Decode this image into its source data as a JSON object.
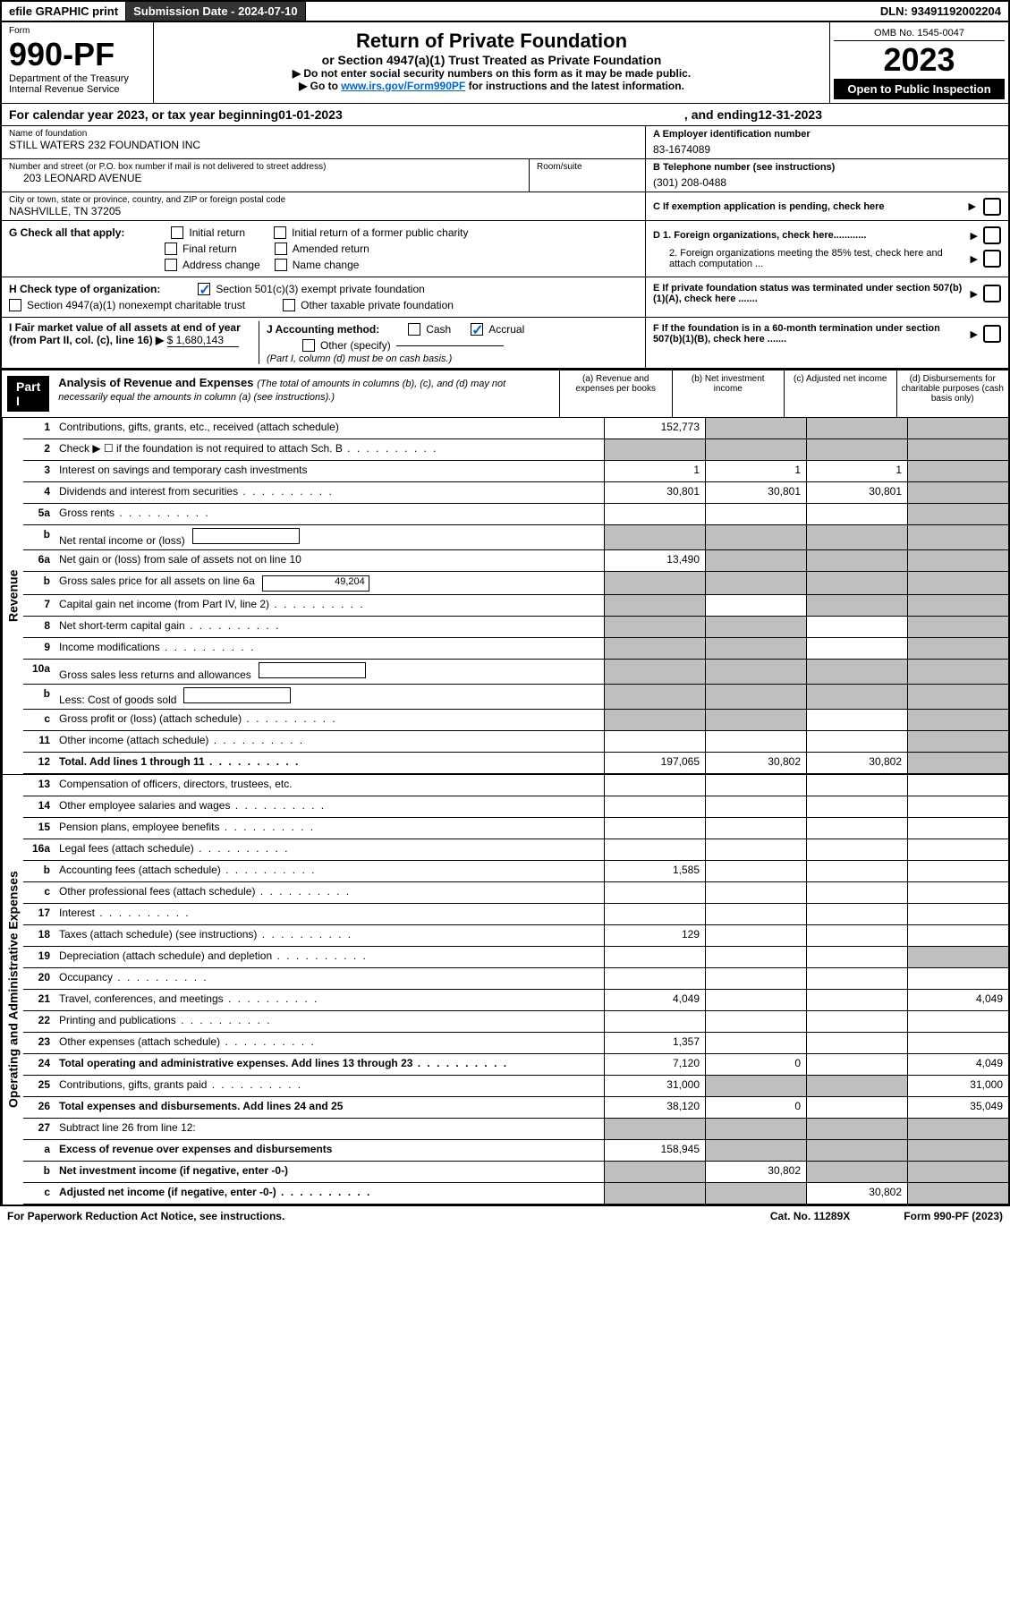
{
  "topbar": {
    "efile": "efile GRAPHIC print",
    "submission_label": "Submission Date - 2024-07-10",
    "dln": "DLN: 93491192002204"
  },
  "header": {
    "form_word": "Form",
    "form_num": "990-PF",
    "dept1": "Department of the Treasury",
    "dept2": "Internal Revenue Service",
    "title": "Return of Private Foundation",
    "subtitle": "or Section 4947(a)(1) Trust Treated as Private Foundation",
    "instr1": "▶ Do not enter social security numbers on this form as it may be made public.",
    "instr2_pre": "▶ Go to ",
    "instr2_link": "www.irs.gov/Form990PF",
    "instr2_post": " for instructions and the latest information.",
    "omb": "OMB No. 1545-0047",
    "year": "2023",
    "open": "Open to Public Inspection"
  },
  "calyear": {
    "pre": "For calendar year 2023, or tax year beginning ",
    "begin": "01-01-2023",
    "mid": " , and ending ",
    "end": "12-31-2023"
  },
  "info": {
    "name_label": "Name of foundation",
    "name": "STILL WATERS 232 FOUNDATION INC",
    "addr_label": "Number and street (or P.O. box number if mail is not delivered to street address)",
    "addr": "203 LEONARD AVENUE",
    "room_label": "Room/suite",
    "city_label": "City or town, state or province, country, and ZIP or foreign postal code",
    "city": "NASHVILLE, TN  37205",
    "a_label": "A Employer identification number",
    "a_val": "83-1674089",
    "b_label": "B Telephone number (see instructions)",
    "b_val": "(301) 208-0488",
    "c_label": "C If exemption application is pending, check here"
  },
  "checks": {
    "g_label": "G Check all that apply:",
    "g_opts": [
      "Initial return",
      "Initial return of a former public charity",
      "Final return",
      "Amended return",
      "Address change",
      "Name change"
    ],
    "h_label": "H Check type of organization:",
    "h1": "Section 501(c)(3) exempt private foundation",
    "h2": "Section 4947(a)(1) nonexempt charitable trust",
    "h3": "Other taxable private foundation",
    "i_label": "I Fair market value of all assets at end of year (from Part II, col. (c), line 16) ▶",
    "i_val": "$  1,680,143",
    "j_label": "J Accounting method:",
    "j_cash": "Cash",
    "j_accrual": "Accrual",
    "j_other": "Other (specify)",
    "j_note": "(Part I, column (d) must be on cash basis.)",
    "d1": "D 1. Foreign organizations, check here............",
    "d2": "2. Foreign organizations meeting the 85% test, check here and attach computation ...",
    "e": "E  If private foundation status was terminated under section 507(b)(1)(A), check here .......",
    "f": "F  If the foundation is in a 60-month termination under section 507(b)(1)(B), check here ......."
  },
  "part1": {
    "label": "Part I",
    "title": "Analysis of Revenue and Expenses",
    "note": " (The total of amounts in columns (b), (c), and (d) may not necessarily equal the amounts in column (a) (see instructions).)",
    "cols": [
      "(a)    Revenue and expenses per books",
      "(b)    Net investment income",
      "(c)    Adjusted net income",
      "(d)    Disbursements for charitable purposes (cash basis only)"
    ]
  },
  "sides": {
    "rev": "Revenue",
    "exp": "Operating and Administrative Expenses"
  },
  "rows": [
    {
      "n": "1",
      "d": "Contributions, gifts, grants, etc., received (attach schedule)",
      "a": "152,773",
      "b": "g",
      "c": "g",
      "dd": "g"
    },
    {
      "n": "2",
      "d": "Check ▶ ☐ if the foundation is not required to attach Sch. B",
      "dots": true,
      "a": "g",
      "b": "g",
      "c": "g",
      "dd": "g"
    },
    {
      "n": "3",
      "d": "Interest on savings and temporary cash investments",
      "a": "1",
      "b": "1",
      "c": "1",
      "dd": "g"
    },
    {
      "n": "4",
      "d": "Dividends and interest from securities",
      "dots": true,
      "a": "30,801",
      "b": "30,801",
      "c": "30,801",
      "dd": "g"
    },
    {
      "n": "5a",
      "d": "Gross rents",
      "dots": true,
      "a": "",
      "b": "",
      "c": "",
      "dd": "g"
    },
    {
      "n": "b",
      "d": "Net rental income or (loss)",
      "a": "g",
      "b": "g",
      "c": "g",
      "dd": "g",
      "inline": true
    },
    {
      "n": "6a",
      "d": "Net gain or (loss) from sale of assets not on line 10",
      "a": "13,490",
      "b": "g",
      "c": "g",
      "dd": "g"
    },
    {
      "n": "b",
      "d": "Gross sales price for all assets on line 6a",
      "a": "g",
      "b": "g",
      "c": "g",
      "dd": "g",
      "inline": true,
      "inlineval": "49,204"
    },
    {
      "n": "7",
      "d": "Capital gain net income (from Part IV, line 2)",
      "dots": true,
      "a": "g",
      "b": "",
      "c": "g",
      "dd": "g"
    },
    {
      "n": "8",
      "d": "Net short-term capital gain",
      "dots": true,
      "a": "g",
      "b": "g",
      "c": "",
      "dd": "g"
    },
    {
      "n": "9",
      "d": "Income modifications",
      "dots": true,
      "a": "g",
      "b": "g",
      "c": "",
      "dd": "g"
    },
    {
      "n": "10a",
      "d": "Gross sales less returns and allowances",
      "a": "g",
      "b": "g",
      "c": "g",
      "dd": "g",
      "inline": true
    },
    {
      "n": "b",
      "d": "Less: Cost of goods sold",
      "dots": true,
      "a": "g",
      "b": "g",
      "c": "g",
      "dd": "g",
      "inline": true
    },
    {
      "n": "c",
      "d": "Gross profit or (loss) (attach schedule)",
      "dots": true,
      "a": "g",
      "b": "g",
      "c": "",
      "dd": "g"
    },
    {
      "n": "11",
      "d": "Other income (attach schedule)",
      "dots": true,
      "a": "",
      "b": "",
      "c": "",
      "dd": "g"
    },
    {
      "n": "12",
      "d": "Total. Add lines 1 through 11",
      "dots": true,
      "bold": true,
      "a": "197,065",
      "b": "30,802",
      "c": "30,802",
      "dd": "g"
    }
  ],
  "exp_rows": [
    {
      "n": "13",
      "d": "Compensation of officers, directors, trustees, etc.",
      "a": "",
      "b": "",
      "c": "",
      "dd": ""
    },
    {
      "n": "14",
      "d": "Other employee salaries and wages",
      "dots": true,
      "a": "",
      "b": "",
      "c": "",
      "dd": ""
    },
    {
      "n": "15",
      "d": "Pension plans, employee benefits",
      "dots": true,
      "a": "",
      "b": "",
      "c": "",
      "dd": ""
    },
    {
      "n": "16a",
      "d": "Legal fees (attach schedule)",
      "dots": true,
      "a": "",
      "b": "",
      "c": "",
      "dd": ""
    },
    {
      "n": "b",
      "d": "Accounting fees (attach schedule)",
      "dots": true,
      "a": "1,585",
      "b": "",
      "c": "",
      "dd": ""
    },
    {
      "n": "c",
      "d": "Other professional fees (attach schedule)",
      "dots": true,
      "a": "",
      "b": "",
      "c": "",
      "dd": ""
    },
    {
      "n": "17",
      "d": "Interest",
      "dots": true,
      "a": "",
      "b": "",
      "c": "",
      "dd": ""
    },
    {
      "n": "18",
      "d": "Taxes (attach schedule) (see instructions)",
      "dots": true,
      "a": "129",
      "b": "",
      "c": "",
      "dd": ""
    },
    {
      "n": "19",
      "d": "Depreciation (attach schedule) and depletion",
      "dots": true,
      "a": "",
      "b": "",
      "c": "",
      "dd": "g"
    },
    {
      "n": "20",
      "d": "Occupancy",
      "dots": true,
      "a": "",
      "b": "",
      "c": "",
      "dd": ""
    },
    {
      "n": "21",
      "d": "Travel, conferences, and meetings",
      "dots": true,
      "a": "4,049",
      "b": "",
      "c": "",
      "dd": "4,049"
    },
    {
      "n": "22",
      "d": "Printing and publications",
      "dots": true,
      "a": "",
      "b": "",
      "c": "",
      "dd": ""
    },
    {
      "n": "23",
      "d": "Other expenses (attach schedule)",
      "dots": true,
      "a": "1,357",
      "b": "",
      "c": "",
      "dd": ""
    },
    {
      "n": "24",
      "d": "Total operating and administrative expenses. Add lines 13 through 23",
      "dots": true,
      "bold": true,
      "a": "7,120",
      "b": "0",
      "c": "",
      "dd": "4,049"
    },
    {
      "n": "25",
      "d": "Contributions, gifts, grants paid",
      "dots": true,
      "a": "31,000",
      "b": "g",
      "c": "g",
      "dd": "31,000"
    },
    {
      "n": "26",
      "d": "Total expenses and disbursements. Add lines 24 and 25",
      "bold": true,
      "a": "38,120",
      "b": "0",
      "c": "",
      "dd": "35,049"
    },
    {
      "n": "27",
      "d": "Subtract line 26 from line 12:",
      "a": "g",
      "b": "g",
      "c": "g",
      "dd": "g"
    },
    {
      "n": "a",
      "d": "Excess of revenue over expenses and disbursements",
      "bold": true,
      "a": "158,945",
      "b": "g",
      "c": "g",
      "dd": "g"
    },
    {
      "n": "b",
      "d": "Net investment income (if negative, enter -0-)",
      "bold": true,
      "a": "g",
      "b": "30,802",
      "c": "g",
      "dd": "g"
    },
    {
      "n": "c",
      "d": "Adjusted net income (if negative, enter -0-)",
      "dots": true,
      "bold": true,
      "a": "g",
      "b": "g",
      "c": "30,802",
      "dd": "g"
    }
  ],
  "footer": {
    "left": "For Paperwork Reduction Act Notice, see instructions.",
    "mid": "Cat. No. 11289X",
    "right": "Form 990-PF (2023)"
  }
}
